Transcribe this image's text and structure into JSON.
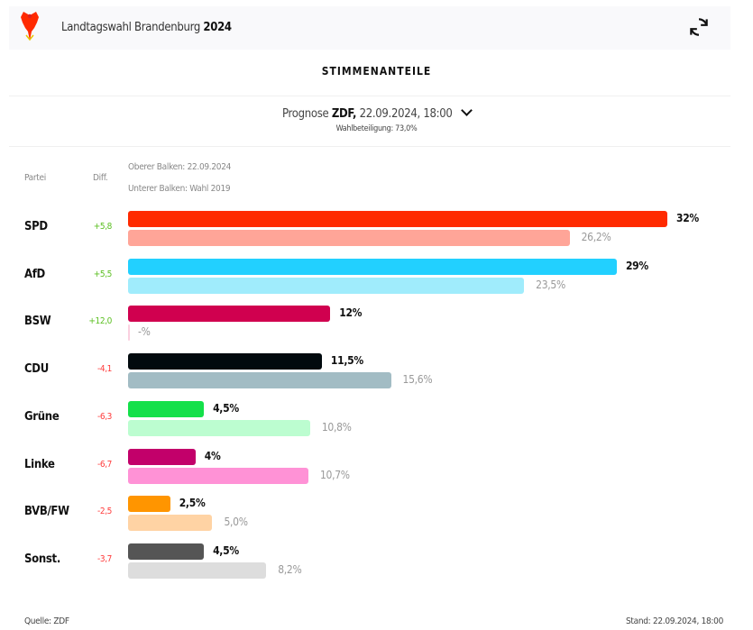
{
  "header": {
    "title_prefix": "Landtagswahl Brandenburg",
    "title_year": "2024",
    "logo": "brandenburg-eagle-coat-of-arms",
    "refresh_icon": "refresh-icon"
  },
  "section_title": "STIMMENANTEILE",
  "selector": {
    "prefix": "Prognose",
    "source": "ZDF,",
    "datetime": "22.09.2024, 18:00",
    "turnout": "Wahlbeteiligung: 73,0%"
  },
  "columns": {
    "party": "Partei",
    "diff": "Diff.",
    "upper": "Oberer Balken: 22.09.2024",
    "lower": "Unterer Balken: Wahl 2019"
  },
  "chart_data": {
    "type": "bar",
    "orientation": "horizontal",
    "categories": [
      "SPD",
      "AfD",
      "BSW",
      "CDU",
      "Grüne",
      "Linke",
      "BVB/FW",
      "Sonst."
    ],
    "series": [
      {
        "name": "Oberer Balken: 22.09.2024",
        "values": [
          32,
          29,
          12,
          11.5,
          4.5,
          4,
          2.5,
          4.5
        ],
        "labels": [
          "32%",
          "29%",
          "12%",
          "11,5%",
          "4,5%",
          "4%",
          "2,5%",
          "4,5%"
        ],
        "colors": [
          "#ff2a00",
          "#22d0ff",
          "#d0004f",
          "#020a0e",
          "#14e04a",
          "#c2006a",
          "#ff9500",
          "#555555"
        ]
      },
      {
        "name": "Unterer Balken: Wahl 2019",
        "values": [
          26.2,
          23.5,
          null,
          15.6,
          10.8,
          10.7,
          5.0,
          8.2
        ],
        "labels": [
          "26,2%",
          "23,5%",
          "-%",
          "15,6%",
          "10,8%",
          "10,7%",
          "5,0%",
          "8,2%"
        ],
        "colors": [
          "#ffa598",
          "#a0ecfc",
          "#fbd0e0",
          "#a2bcc4",
          "#bcfdd0",
          "#ff92d6",
          "#ffd3a4",
          "#dddddd"
        ]
      }
    ],
    "diff": [
      "+5,8",
      "+5,5",
      "+12,0",
      "-4,1",
      "-6,3",
      "-6,7",
      "-2,5",
      "-3,7"
    ],
    "diff_colors": {
      "positive": "#5bbf21",
      "negative": "#ff3b3b"
    }
  },
  "footer": {
    "source": "Quelle: ZDF",
    "stand": "Stand: 22.09.2024, 18:00"
  }
}
